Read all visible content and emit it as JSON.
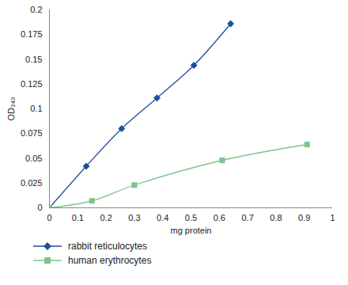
{
  "chart_data": {
    "type": "line",
    "x_label": "mg protein",
    "y_label": "OD₃₄₀",
    "xlim": [
      0,
      1
    ],
    "xticks": [
      0,
      0.1,
      0.2,
      0.3,
      0.4,
      0.5,
      0.6,
      0.7,
      0.8,
      0.9,
      1
    ],
    "ylim": [
      0,
      0.2
    ],
    "yticks": [
      0,
      0.025,
      0.05,
      0.075,
      0.1,
      0.125,
      0.15,
      0.175,
      0.2
    ],
    "grid": false,
    "legend": "bottom",
    "series": [
      {
        "name": "rabbit reticulocytes",
        "color": "#1f4e9c",
        "marker": "diamond",
        "x": [
          0,
          0.13,
          0.255,
          0.38,
          0.51,
          0.64
        ],
        "values": [
          0,
          0.042,
          0.08,
          0.111,
          0.144,
          0.186
        ]
      },
      {
        "name": "human erythrocytes",
        "color": "#7cc48c",
        "marker": "square",
        "x": [
          0,
          0.15,
          0.3,
          0.61,
          0.91
        ],
        "values": [
          0,
          0.007,
          0.023,
          0.048,
          0.064
        ]
      }
    ]
  }
}
